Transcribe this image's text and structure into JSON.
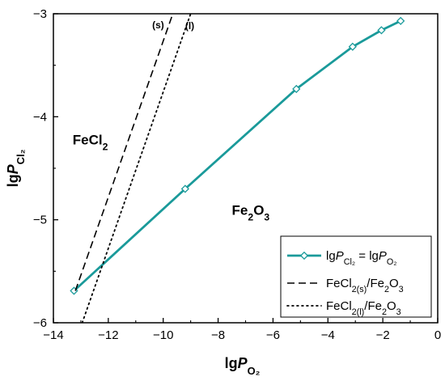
{
  "chart_data": {
    "type": "line",
    "xlabel": {
      "main": "lg",
      "italic": "P",
      "sub": "O₂"
    },
    "ylabel": {
      "main": "lg",
      "italic": "P",
      "sub": "Cl₂"
    },
    "xlim": [
      -14,
      0
    ],
    "ylim": [
      -6,
      -3
    ],
    "xticks": [
      -14,
      -12,
      -10,
      -8,
      -6,
      -4,
      -2,
      0
    ],
    "xtick_labels": [
      "−14",
      "−12",
      "−10",
      "−8",
      "−6",
      "−4",
      "−2",
      "0"
    ],
    "yticks": [
      -6,
      -5,
      -4,
      -3
    ],
    "ytick_labels": [
      "−6",
      "−5",
      "−4",
      "−3"
    ],
    "grid": false,
    "legend_position": "bottom-right",
    "series": [
      {
        "legend": {
          "pre": "lg",
          "italic1": "P",
          "sub1": "Cl₂",
          "mid": " = lg",
          "italic2": "P",
          "sub2": "O₂"
        },
        "style": "solid-marker",
        "color": "#1a9a9a",
        "x": [
          -13.25,
          -9.2,
          -5.15,
          -3.1,
          -2.05,
          -1.35
        ],
        "y": [
          -5.69,
          -4.7,
          -3.73,
          -3.32,
          -3.16,
          -3.07
        ]
      },
      {
        "legend": {
          "pre": "FeCl",
          "sub1": "2(s)",
          "post": "/Fe",
          "sub2": "2",
          "post2": "O",
          "sub3": "3"
        },
        "style": "dashed",
        "color": "#000000",
        "x": [
          -13.2,
          -9.65
        ],
        "y": [
          -5.69,
          -3.0
        ]
      },
      {
        "legend": {
          "pre": "FeCl",
          "sub1": "2(l)",
          "post": "/Fe",
          "sub2": "2",
          "post2": "O",
          "sub3": "3"
        },
        "style": "dotted",
        "color": "#000000",
        "x": [
          -12.95,
          -9.0
        ],
        "y": [
          -6.0,
          -3.0
        ]
      }
    ],
    "annotations": [
      {
        "name": "region-fecl2",
        "main": "FeCl",
        "sub": "2",
        "x": -13.3,
        "y": -4.27,
        "cls": "region-label"
      },
      {
        "name": "region-fe2o3",
        "main": "Fe",
        "sub": "2",
        "main2": "O",
        "sub2": "3",
        "x": -7.5,
        "y": -4.95,
        "cls": "region-label"
      },
      {
        "name": "phase-solid",
        "text": "(s)",
        "x": -10.4,
        "y": -3.14,
        "cls": "phase-label"
      },
      {
        "name": "phase-liquid",
        "text": "(l)",
        "x": -9.2,
        "y": -3.15,
        "cls": "phase-label"
      }
    ]
  }
}
